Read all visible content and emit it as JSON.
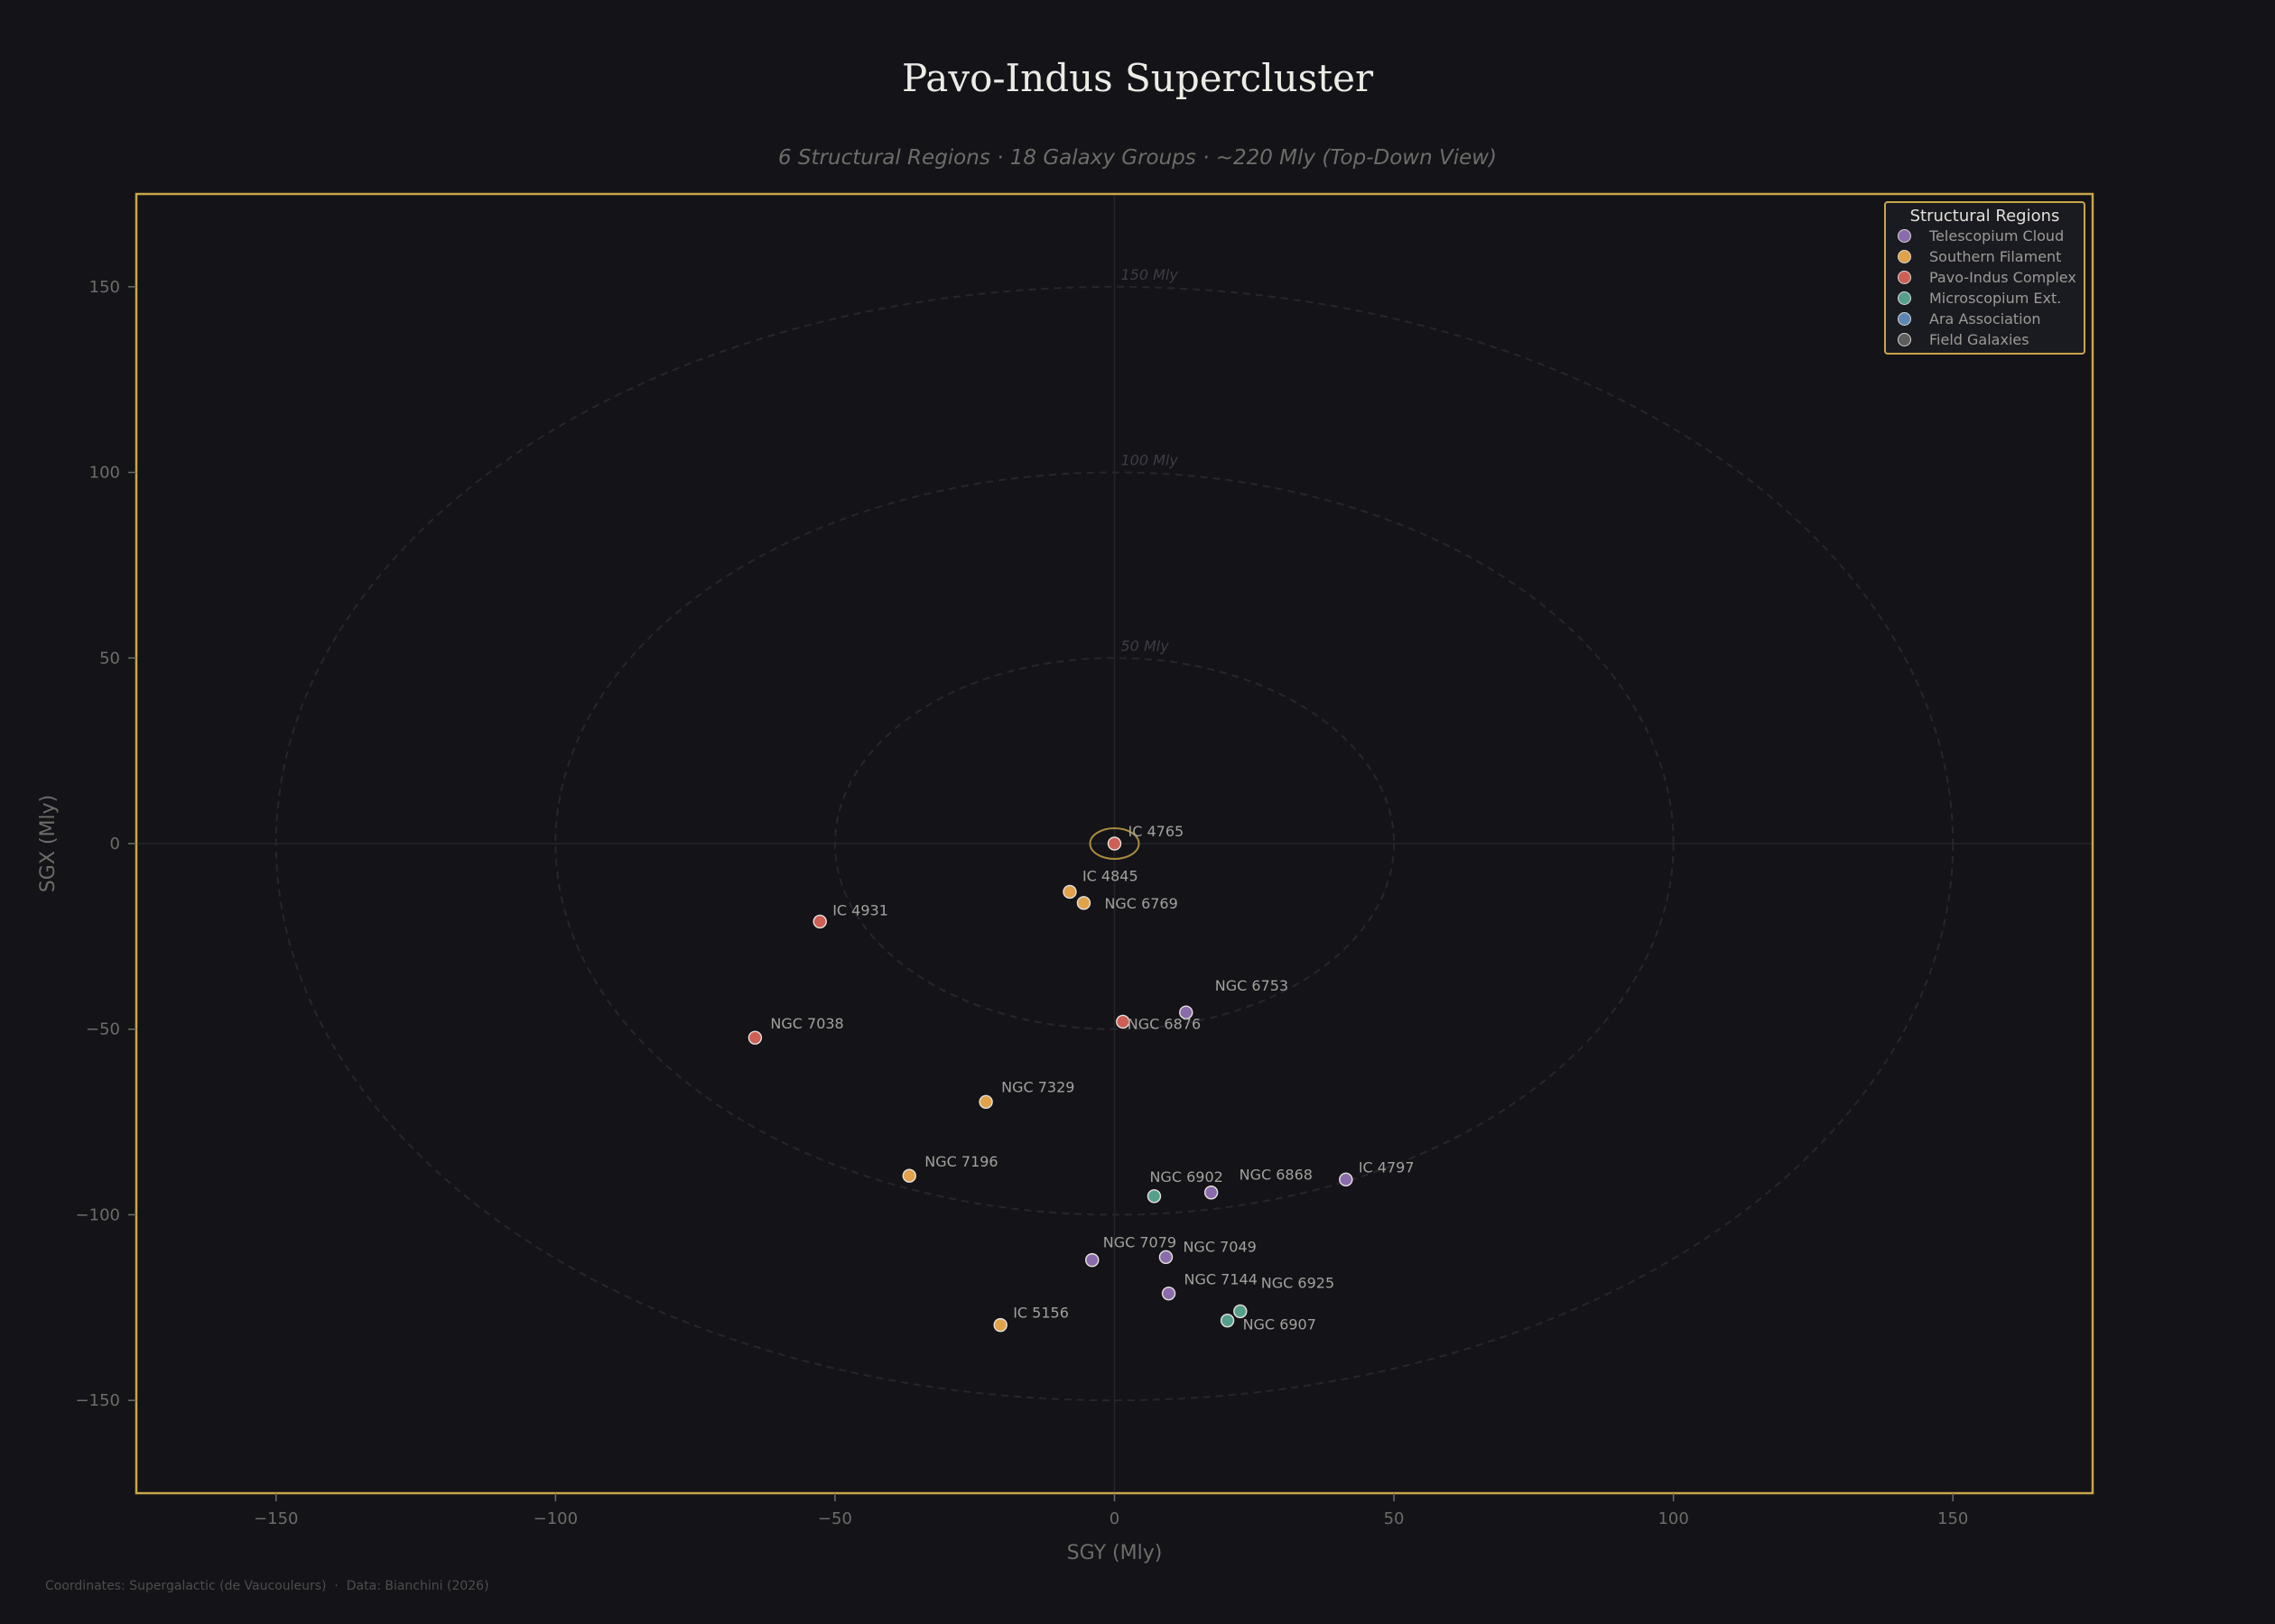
{
  "header": {
    "title": "Pavo-Indus Supercluster",
    "subtitle": "6 Structural Regions · 18 Galaxy Groups · ~220 Mly  (Top-Down View)"
  },
  "footer": {
    "text": "Coordinates: Supergalactic (de Vaucouleurs)  ·  Data: Bianchini (2026)"
  },
  "legend": {
    "title": "Structural Regions",
    "items": [
      {
        "label": "Telescopium Cloud",
        "color": "#8a6bab"
      },
      {
        "label": "Southern Filament",
        "color": "#e0a24a"
      },
      {
        "label": "Pavo-Indus Complex",
        "color": "#cd5f55"
      },
      {
        "label": "Microscopium Ext.",
        "color": "#55a08c"
      },
      {
        "label": "Ara Association",
        "color": "#5b86b5"
      },
      {
        "label": "Field Galaxies",
        "color": "#5c5c5c"
      }
    ]
  },
  "axes": {
    "xlabel": "SGY (Mly)",
    "ylabel": "SGX (Mly)",
    "xticks": [
      "−150",
      "−100",
      "−50",
      "0",
      "50",
      "100",
      "150"
    ],
    "yticks": [
      "150",
      "100",
      "50",
      "0",
      "−50",
      "−100",
      "−150"
    ],
    "ring_labels": [
      "50 Mly",
      "100 Mly",
      "150 Mly"
    ]
  },
  "chart_data": {
    "type": "scatter",
    "title": "Pavo-Indus Supercluster",
    "subtitle": "6 Structural Regions · 18 Galaxy Groups · ~220 Mly  (Top-Down View)",
    "xlabel": "SGY (Mly)",
    "ylabel": "SGX (Mly)",
    "xlim": [
      -175,
      175
    ],
    "ylim": [
      -175,
      175
    ],
    "xticks": [
      -150,
      -100,
      -50,
      0,
      50,
      100,
      150
    ],
    "yticks": [
      -150,
      -100,
      -50,
      0,
      50,
      100,
      150
    ],
    "grid": false,
    "reference_rings_mly": [
      50,
      100,
      150
    ],
    "legend_position": "upper right",
    "legend_title": "Structural Regions",
    "series": [
      {
        "name": "Telescopium Cloud",
        "color": "#8a6bab",
        "points": [
          {
            "label": "NGC 6753",
            "x": 12.8,
            "y": -45.5
          },
          {
            "label": "NGC 6868",
            "x": 17.3,
            "y": -94.0
          },
          {
            "label": "IC 4797",
            "x": 41.4,
            "y": -90.5
          },
          {
            "label": "NGC 7079",
            "x": -4.0,
            "y": -112.2
          },
          {
            "label": "NGC 7049",
            "x": 9.2,
            "y": -111.4
          },
          {
            "label": "NGC 7144",
            "x": 9.7,
            "y": -121.2
          }
        ]
      },
      {
        "name": "Southern Filament",
        "color": "#e0a24a",
        "points": [
          {
            "label": "IC 4845",
            "x": -8.0,
            "y": -13.0
          },
          {
            "label": "NGC 6769",
            "x": -5.5,
            "y": -16.0
          },
          {
            "label": "NGC 7329",
            "x": -23.0,
            "y": -69.6
          },
          {
            "label": "NGC 7196",
            "x": -36.7,
            "y": -89.5
          },
          {
            "label": "IC 5156",
            "x": -20.4,
            "y": -129.7
          }
        ]
      },
      {
        "name": "Pavo-Indus Complex",
        "color": "#cd5f55",
        "points": [
          {
            "label": "IC 4765",
            "x": 0.0,
            "y": 0.0,
            "highlight": true
          },
          {
            "label": "IC 4931",
            "x": -52.7,
            "y": -21.0
          },
          {
            "label": "NGC 6876",
            "x": 1.5,
            "y": -48.0
          },
          {
            "label": "NGC 7038",
            "x": -64.3,
            "y": -52.3
          }
        ]
      },
      {
        "name": "Microscopium Ext.",
        "color": "#55a08c",
        "points": [
          {
            "label": "NGC 6902",
            "x": 7.1,
            "y": -95.0
          },
          {
            "label": "NGC 6925",
            "x": 22.5,
            "y": -126.0
          },
          {
            "label": "NGC 6907",
            "x": 20.2,
            "y": -128.5
          }
        ]
      },
      {
        "name": "Ara Association",
        "color": "#5b86b5",
        "points": []
      },
      {
        "name": "Field Galaxies",
        "color": "#5c5c5c",
        "points": []
      }
    ]
  }
}
